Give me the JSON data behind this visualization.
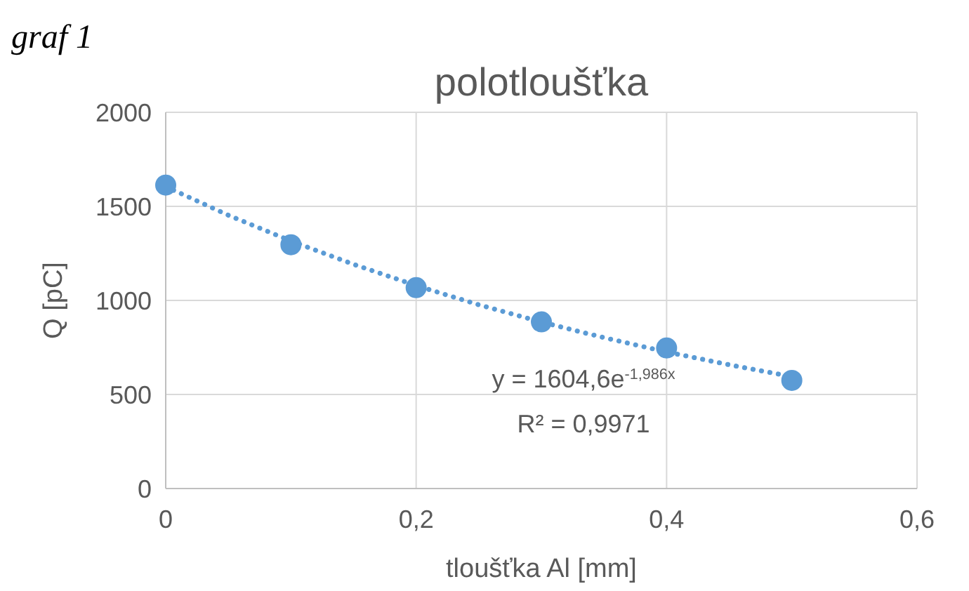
{
  "chart_data": {
    "type": "scatter",
    "title": "polotloušťka",
    "xlabel": "tloušťka Al [mm]",
    "ylabel": "Q [pC]",
    "annotations": [
      "graf 1",
      "y = 1604,6e$^{-1,986x}$",
      "R² = 0,9971"
    ],
    "series": [
      {
        "color": "#5b9bd5",
        "marker": "circle",
        "x": [
          0,
          0.1,
          0.2,
          0.3,
          0.4,
          0.5
        ],
        "values": [
          1613,
          1296,
          1068,
          886,
          747,
          575
        ]
      },
      {
        "type": "line",
        "color": "#5b9bd5",
        "line_style": "dotted",
        "marker": "none",
        "x": [
          0,
          0.05,
          0.1,
          0.15,
          0.2,
          0.25,
          0.3,
          0.35,
          0.4,
          0.45,
          0.5
        ],
        "values": [
          1605,
          1453,
          1316,
          1192,
          1079,
          977,
          885,
          802,
          726,
          658,
          595
        ]
      }
    ],
    "xlim": [
      0,
      0.6
    ],
    "xticks": [
      {
        "value": 0,
        "label": "0"
      },
      {
        "value": 0.2,
        "label": "0,2"
      },
      {
        "value": 0.4,
        "label": "0,4"
      },
      {
        "value": 0.6,
        "label": "0,6"
      }
    ],
    "ylim": [
      0,
      2000
    ],
    "yticks": [
      0,
      500,
      1000,
      1500,
      2000
    ],
    "grid": true
  }
}
